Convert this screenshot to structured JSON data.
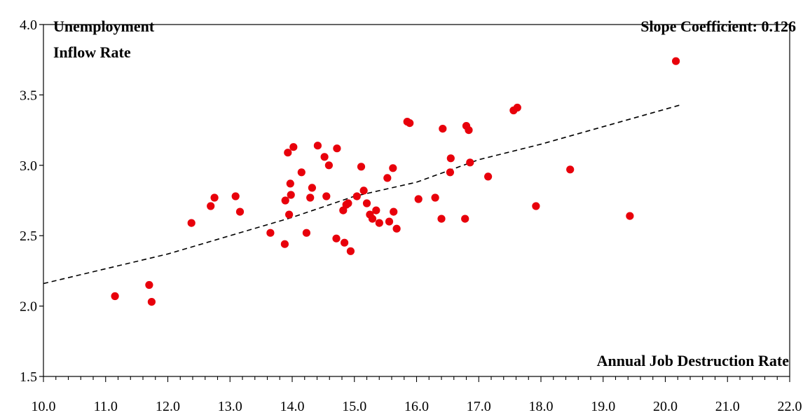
{
  "chart_data": {
    "type": "scatter",
    "annotations": {
      "ylabel_line1": "Unemployment",
      "ylabel_line2": "Inflow Rate",
      "slope": "Slope Coefficient: 0.126",
      "xlabel": "Annual Job Destruction Rate"
    },
    "xlim": [
      10.0,
      22.0
    ],
    "ylim": [
      1.5,
      4.0
    ],
    "x_ticks": [
      "10.0",
      "11.0",
      "12.0",
      "13.0",
      "14.0",
      "15.0",
      "16.0",
      "17.0",
      "18.0",
      "19.0",
      "20.0",
      "21.0",
      "22.0"
    ],
    "y_ticks": [
      "1.5",
      "2.0",
      "2.5",
      "3.0",
      "3.5",
      "4.0"
    ],
    "grid": false,
    "point_color": "#e8000b",
    "trend_color": "#000000",
    "points": [
      {
        "x": 11.15,
        "y": 2.07
      },
      {
        "x": 11.7,
        "y": 2.15
      },
      {
        "x": 11.74,
        "y": 2.03
      },
      {
        "x": 12.38,
        "y": 2.59
      },
      {
        "x": 12.69,
        "y": 2.71
      },
      {
        "x": 12.75,
        "y": 2.77
      },
      {
        "x": 13.09,
        "y": 2.78
      },
      {
        "x": 13.16,
        "y": 2.67
      },
      {
        "x": 13.65,
        "y": 2.52
      },
      {
        "x": 13.88,
        "y": 2.44
      },
      {
        "x": 13.89,
        "y": 2.75
      },
      {
        "x": 13.93,
        "y": 3.09
      },
      {
        "x": 13.95,
        "y": 2.65
      },
      {
        "x": 13.97,
        "y": 2.87
      },
      {
        "x": 13.98,
        "y": 2.79
      },
      {
        "x": 14.02,
        "y": 3.13
      },
      {
        "x": 14.15,
        "y": 2.95
      },
      {
        "x": 14.23,
        "y": 2.52
      },
      {
        "x": 14.29,
        "y": 2.77
      },
      {
        "x": 14.32,
        "y": 2.84
      },
      {
        "x": 14.41,
        "y": 3.14
      },
      {
        "x": 14.52,
        "y": 3.06
      },
      {
        "x": 14.55,
        "y": 2.78
      },
      {
        "x": 14.59,
        "y": 3.0
      },
      {
        "x": 14.71,
        "y": 2.48
      },
      {
        "x": 14.72,
        "y": 3.12
      },
      {
        "x": 14.82,
        "y": 2.68
      },
      {
        "x": 14.84,
        "y": 2.45
      },
      {
        "x": 14.87,
        "y": 2.72
      },
      {
        "x": 14.9,
        "y": 2.73
      },
      {
        "x": 14.94,
        "y": 2.39
      },
      {
        "x": 15.04,
        "y": 2.78
      },
      {
        "x": 15.11,
        "y": 2.99
      },
      {
        "x": 15.15,
        "y": 2.82
      },
      {
        "x": 15.2,
        "y": 2.73
      },
      {
        "x": 15.25,
        "y": 2.65
      },
      {
        "x": 15.29,
        "y": 2.62
      },
      {
        "x": 15.35,
        "y": 2.68
      },
      {
        "x": 15.4,
        "y": 2.59
      },
      {
        "x": 15.53,
        "y": 2.91
      },
      {
        "x": 15.56,
        "y": 2.6
      },
      {
        "x": 15.62,
        "y": 2.98
      },
      {
        "x": 15.63,
        "y": 2.67
      },
      {
        "x": 15.68,
        "y": 2.55
      },
      {
        "x": 15.85,
        "y": 3.31
      },
      {
        "x": 15.89,
        "y": 3.3
      },
      {
        "x": 16.03,
        "y": 2.76
      },
      {
        "x": 16.3,
        "y": 2.77
      },
      {
        "x": 16.4,
        "y": 2.62
      },
      {
        "x": 16.42,
        "y": 3.26
      },
      {
        "x": 16.54,
        "y": 2.95
      },
      {
        "x": 16.55,
        "y": 3.05
      },
      {
        "x": 16.78,
        "y": 2.62
      },
      {
        "x": 16.8,
        "y": 3.28
      },
      {
        "x": 16.84,
        "y": 3.25
      },
      {
        "x": 16.86,
        "y": 3.02
      },
      {
        "x": 17.15,
        "y": 2.92
      },
      {
        "x": 17.56,
        "y": 3.39
      },
      {
        "x": 17.62,
        "y": 3.41
      },
      {
        "x": 17.92,
        "y": 2.71
      },
      {
        "x": 18.47,
        "y": 2.97
      },
      {
        "x": 19.43,
        "y": 2.64
      },
      {
        "x": 20.17,
        "y": 3.74
      }
    ],
    "trend_line": [
      {
        "x": 10.0,
        "y": 2.16
      },
      {
        "x": 12.0,
        "y": 2.37
      },
      {
        "x": 14.0,
        "y": 2.63
      },
      {
        "x": 15.0,
        "y": 2.78
      },
      {
        "x": 16.0,
        "y": 2.88
      },
      {
        "x": 17.0,
        "y": 3.04
      },
      {
        "x": 18.0,
        "y": 3.15
      },
      {
        "x": 20.25,
        "y": 3.43
      }
    ]
  }
}
